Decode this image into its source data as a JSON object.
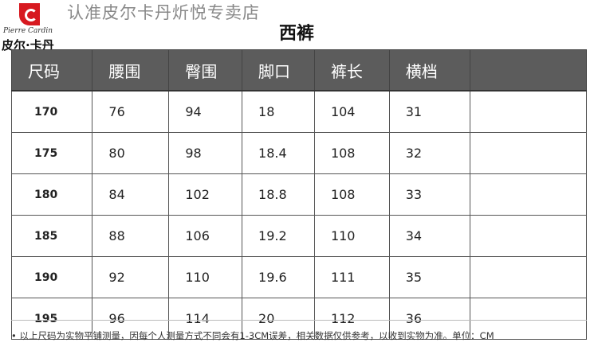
{
  "logo": {
    "script": "Pierre Cardin",
    "cn": "皮尔·卡丹"
  },
  "store": "认准皮尔卡丹炘悦专卖店",
  "title": "西裤",
  "headers": [
    "尺码",
    "腰围",
    "臀围",
    "脚口",
    "裤长",
    "横档",
    ""
  ],
  "rows": [
    [
      "170",
      "76",
      "94",
      "18",
      "104",
      "31",
      ""
    ],
    [
      "175",
      "80",
      "98",
      "18.4",
      "108",
      "32",
      ""
    ],
    [
      "180",
      "84",
      "102",
      "18.8",
      "108",
      "33",
      ""
    ],
    [
      "185",
      "88",
      "106",
      "19.2",
      "110",
      "34",
      ""
    ],
    [
      "190",
      "92",
      "110",
      "19.6",
      "111",
      "35",
      ""
    ],
    [
      "195",
      "96",
      "114",
      "20",
      "112",
      "36",
      ""
    ]
  ],
  "note": "• 以上尺码为实物平铺测量，因每个人测量方式不同会有1-3CM误差，相关数据仅供参考，以收到实物为准。单位：CM"
}
